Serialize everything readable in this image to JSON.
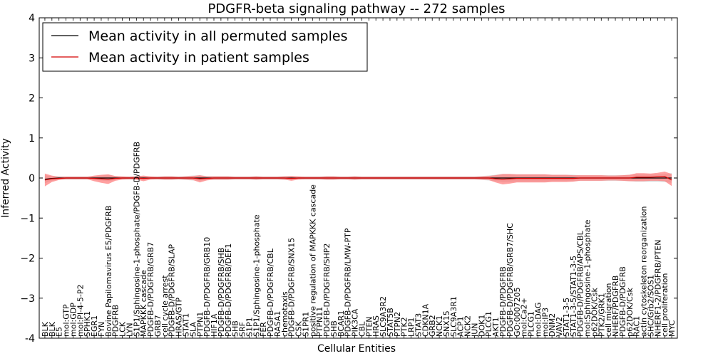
{
  "chart_data": {
    "type": "line",
    "title": "PDGFR-beta signaling pathway -- 272 samples",
    "xlabel": "Cellular Entities",
    "ylabel": "Inferred Activity",
    "ylim": [
      -4,
      4
    ],
    "yticks": [
      "-4",
      "−3",
      "−2",
      "−1",
      "0",
      "1",
      "2",
      "3",
      "4"
    ],
    "yticks_values": [
      -4,
      -3,
      -2,
      -1,
      0,
      1,
      2,
      3,
      4
    ],
    "grid": false,
    "legend_position": "top-left",
    "colors": {
      "permuted_line": "#000000",
      "patient_line": "#d40000",
      "permuted_band": "#c8c8c8",
      "patient_band": "#ff8080"
    },
    "categories": [
      "BLK",
      "BLK",
      "E5",
      "mol:GTP",
      "mol:GDP",
      "mol:PI-4-5-P2",
      "SPHK1",
      "EGR1",
      "FYN",
      "Bovine Papilomavirus E5/PDGFRB",
      "PDGFRB",
      "LCK",
      "LYN",
      "S1P1/Sphingosine-1-phosphate/PDGFB-D/PDGFRB",
      "MAPKKK cascade",
      "PDGFB-D/PDGFRB/GRB7",
      "GRB7",
      "cell cycle arrest",
      "PDGFB-D/PDGFRB/SLAP",
      "HRAS/GTP",
      "STAT1",
      "SLA",
      "PTPN1",
      "PDGFB-D/PDGFRB/GRB10",
      "HIF1A",
      "PDGFB-D/PDGFRB/SHB",
      "PDGFB-D/PDGFRB/DEF1",
      "SHB",
      "SRF",
      "S1P1",
      "S1P1/Sphingosine-1-phosphate",
      "FER",
      "PDGFB-D/PDGFRB/CBL",
      "RASA1",
      "chemotaxis",
      "PDGFB-D/PDGFRB/SNX15",
      "CSK",
      "S1PR1",
      "positive regulation of MAPKKK cascade",
      "PTPN11",
      "PDGFB-D/PDGFRB/SHP2",
      "SHB",
      "BCAR1",
      "PDGFB-D/PDGFRB/LMW-PTP",
      "PIK3CA",
      "CBL",
      "PTEN",
      "HRAS",
      "SLC9A3R2",
      "STAT5B",
      "PTPN2",
      "PTK2",
      "LRP1",
      "STAT3",
      "CDKN1A",
      "GRB2",
      "NCK1",
      "SNX15",
      "SLC9A3R1",
      "ACP1",
      "NCK2",
      "JUN",
      "DOK1",
      "PLCG1",
      "AKT1",
      "PDGFB-D/PDGFRB",
      "PDGFB-D/PDGFRB/GRB7/SHC",
      "GO:0007205",
      "mol:Ca2+",
      "PLCG1",
      "mol:DAG",
      "mol:IP3",
      "DNM2",
      "VAV2",
      "STAT1-3-5",
      "STAT1-3-5/STAT1-3-5",
      "PDGFB-D/PDGFRB/APS/CBL",
      "mol:Sphingosine-1-phosphate",
      "p62DOK/Csk",
      "PTK2/GRK1",
      "cell migration",
      "NHERF/PDGFRB",
      "PDGFB-D/PDGFRB",
      "p62DOK/Csk",
      "RAC1",
      "actin cytoskeleton reorganization",
      "SHC/Grb2/SOS1",
      "NHERF1-2/PDGFRB/PTEN",
      "cell proliferation",
      "MYC"
    ],
    "series": [
      {
        "name": "Mean activity in all permuted samples",
        "values": [
          -0.03,
          -0.01,
          0.0,
          0.0,
          0.0,
          0.0,
          0.0,
          0.0,
          0.0,
          0.0,
          0.0,
          0.0,
          0.0,
          0.0,
          0.0,
          0.0,
          0.0,
          0.0,
          0.0,
          0.0,
          0.0,
          0.0,
          0.0,
          0.0,
          0.0,
          0.0,
          0.0,
          0.0,
          0.0,
          0.0,
          0.0,
          0.0,
          0.0,
          0.0,
          0.0,
          0.0,
          0.0,
          0.0,
          0.0,
          0.0,
          0.0,
          0.0,
          0.0,
          0.0,
          0.0,
          0.0,
          0.0,
          0.0,
          0.0,
          0.0,
          0.0,
          0.0,
          0.0,
          0.0,
          0.0,
          0.0,
          0.0,
          0.0,
          0.0,
          0.0,
          0.0,
          0.0,
          0.0,
          0.0,
          0.0,
          0.0,
          0.0,
          0.0,
          0.0,
          0.0,
          0.0,
          0.0,
          0.0,
          0.0,
          0.0,
          0.0,
          0.0,
          0.0,
          0.0,
          0.0,
          0.0,
          0.0,
          0.0,
          0.0,
          0.0,
          0.0,
          0.0,
          0.0,
          0.0,
          0.0
        ]
      },
      {
        "name": "Mean activity in patient samples",
        "values": [
          -0.05,
          -0.02,
          -0.01,
          0.0,
          0.0,
          0.0,
          0.0,
          -0.01,
          -0.02,
          -0.03,
          -0.01,
          0.0,
          0.0,
          0.0,
          -0.01,
          0.0,
          0.0,
          0.0,
          0.0,
          0.0,
          0.0,
          0.0,
          -0.02,
          -0.01,
          0.0,
          0.0,
          0.0,
          0.0,
          0.0,
          0.0,
          0.0,
          0.0,
          0.0,
          0.0,
          0.0,
          -0.01,
          0.0,
          0.0,
          0.0,
          0.0,
          0.0,
          0.0,
          0.0,
          0.0,
          0.0,
          0.0,
          0.0,
          0.0,
          0.0,
          0.0,
          0.0,
          0.0,
          0.0,
          0.0,
          0.0,
          0.0,
          0.0,
          0.0,
          0.0,
          0.0,
          0.0,
          0.0,
          0.0,
          0.0,
          -0.02,
          -0.03,
          -0.02,
          -0.01,
          -0.01,
          -0.01,
          -0.01,
          -0.01,
          -0.01,
          -0.01,
          -0.01,
          -0.01,
          0.0,
          0.0,
          0.0,
          0.0,
          0.0,
          0.0,
          0.0,
          0.0,
          0.02,
          0.02,
          0.02,
          0.03,
          0.04,
          -0.05
        ]
      }
    ],
    "patient_band_halfwidth": [
      0.16,
      0.08,
      0.04,
      0.03,
      0.03,
      0.03,
      0.03,
      0.07,
      0.1,
      0.12,
      0.06,
      0.04,
      0.03,
      0.04,
      0.07,
      0.04,
      0.03,
      0.04,
      0.04,
      0.03,
      0.04,
      0.05,
      0.09,
      0.05,
      0.04,
      0.04,
      0.04,
      0.03,
      0.03,
      0.03,
      0.04,
      0.03,
      0.03,
      0.03,
      0.04,
      0.06,
      0.04,
      0.03,
      0.03,
      0.03,
      0.04,
      0.04,
      0.03,
      0.03,
      0.04,
      0.03,
      0.03,
      0.03,
      0.03,
      0.03,
      0.03,
      0.03,
      0.03,
      0.03,
      0.03,
      0.03,
      0.03,
      0.03,
      0.03,
      0.03,
      0.03,
      0.03,
      0.04,
      0.05,
      0.09,
      0.13,
      0.12,
      0.1,
      0.1,
      0.1,
      0.1,
      0.1,
      0.09,
      0.09,
      0.09,
      0.08,
      0.07,
      0.07,
      0.07,
      0.07,
      0.06,
      0.06,
      0.07,
      0.08,
      0.1,
      0.1,
      0.09,
      0.1,
      0.12,
      0.15
    ],
    "permuted_band_halfwidth": [
      0.1,
      0.06,
      0.04,
      0.04,
      0.04,
      0.04,
      0.04,
      0.05,
      0.06,
      0.08,
      0.05,
      0.04,
      0.04,
      0.05,
      0.05,
      0.04,
      0.04,
      0.05,
      0.05,
      0.04,
      0.05,
      0.06,
      0.07,
      0.05,
      0.05,
      0.05,
      0.05,
      0.04,
      0.04,
      0.04,
      0.05,
      0.04,
      0.04,
      0.04,
      0.05,
      0.05,
      0.04,
      0.04,
      0.04,
      0.04,
      0.05,
      0.05,
      0.04,
      0.04,
      0.05,
      0.04,
      0.04,
      0.04,
      0.04,
      0.04,
      0.04,
      0.04,
      0.04,
      0.04,
      0.04,
      0.04,
      0.04,
      0.04,
      0.04,
      0.04,
      0.04,
      0.04,
      0.05,
      0.06,
      0.08,
      0.1,
      0.1,
      0.09,
      0.09,
      0.09,
      0.09,
      0.09,
      0.08,
      0.08,
      0.08,
      0.08,
      0.07,
      0.07,
      0.07,
      0.07,
      0.07,
      0.07,
      0.07,
      0.08,
      0.09,
      0.09,
      0.09,
      0.09,
      0.1,
      0.12
    ]
  }
}
